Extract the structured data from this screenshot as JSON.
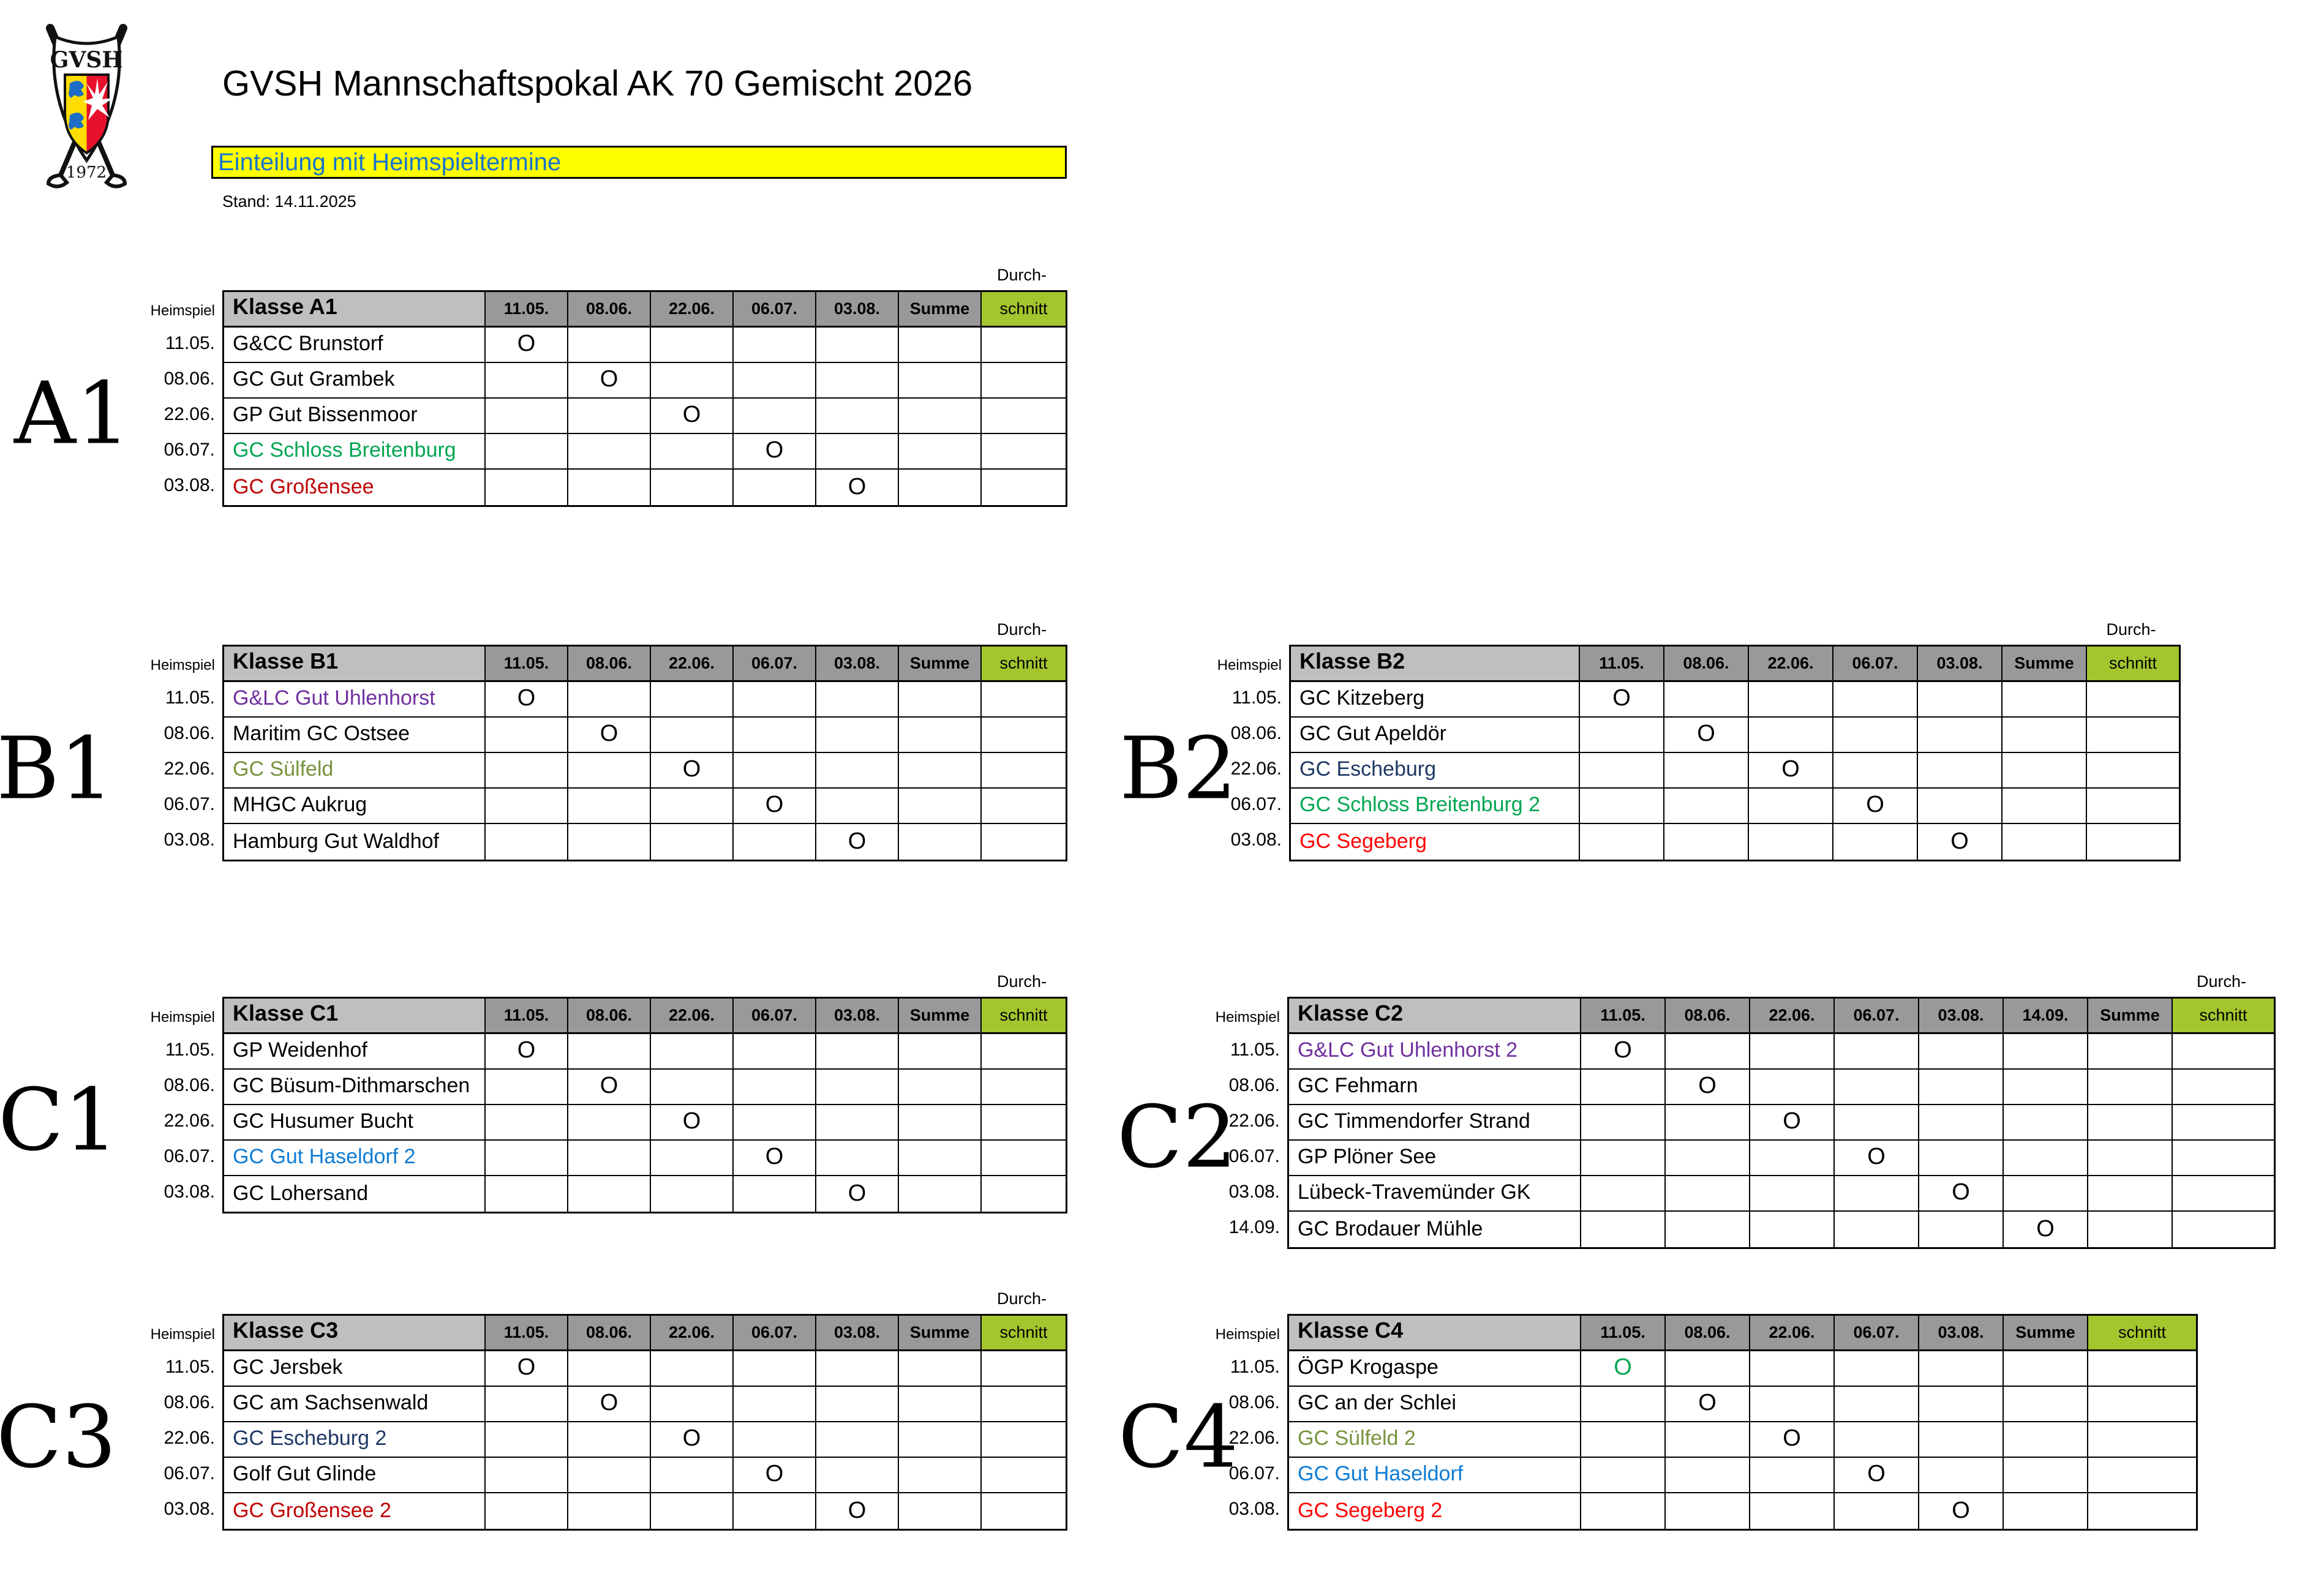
{
  "page": {
    "title": "GVSH Mannschaftspokal AK 70 Gemischt 2026",
    "banner": "Einteilung mit Heimspieltermine",
    "stand": "Stand: 14.11.2025"
  },
  "logo": {
    "org": "GVSH",
    "year": "1972"
  },
  "labels": {
    "heimspiel": "Heimspiel",
    "durch": "Durch-",
    "schnitt": "schnitt",
    "summe": "Summe",
    "mark": "O"
  },
  "colors": {
    "black": "#000000",
    "green": "#00A651",
    "red": "#FF0000",
    "darkred": "#C00000",
    "purple": "#7030A0",
    "olive": "#76933C",
    "navy": "#1F3864",
    "blue": "#0E7CD4",
    "header_light_gray": "#BFBFBF",
    "header_dark_gray": "#999999",
    "schnitt_green": "#A3C52E",
    "banner_yellow": "#FFFF00",
    "banner_text_blue": "#1874CD"
  },
  "tables": [
    {
      "id": "A1",
      "title": "Klasse A1",
      "show_durch": true,
      "dates": [
        "11.05.",
        "08.06.",
        "22.06.",
        "06.07.",
        "03.08."
      ],
      "rows": [
        {
          "date": "11.05.",
          "club": "G&CC Brunstorf",
          "club_color": "black",
          "mark_col": 0,
          "mark_color": "black"
        },
        {
          "date": "08.06.",
          "club": "GC Gut Grambek",
          "club_color": "black",
          "mark_col": 1,
          "mark_color": "black"
        },
        {
          "date": "22.06.",
          "club": "GP Gut Bissenmoor",
          "club_color": "black",
          "mark_col": 2,
          "mark_color": "black"
        },
        {
          "date": "06.07.",
          "club": "GC Schloss Breitenburg",
          "club_color": "green",
          "mark_col": 3,
          "mark_color": "black"
        },
        {
          "date": "03.08.",
          "club": "GC Großensee",
          "club_color": "darkred",
          "mark_col": 4,
          "mark_color": "black"
        }
      ]
    },
    {
      "id": "B1",
      "title": "Klasse B1",
      "show_durch": true,
      "dates": [
        "11.05.",
        "08.06.",
        "22.06.",
        "06.07.",
        "03.08."
      ],
      "rows": [
        {
          "date": "11.05.",
          "club": "G&LC Gut Uhlenhorst",
          "club_color": "purple",
          "mark_col": 0,
          "mark_color": "black"
        },
        {
          "date": "08.06.",
          "club": "Maritim GC Ostsee",
          "club_color": "black",
          "mark_col": 1,
          "mark_color": "black"
        },
        {
          "date": "22.06.",
          "club": "GC Sülfeld",
          "club_color": "olive",
          "mark_col": 2,
          "mark_color": "black"
        },
        {
          "date": "06.07.",
          "club": "MHGC Aukrug",
          "club_color": "black",
          "mark_col": 3,
          "mark_color": "black"
        },
        {
          "date": "03.08.",
          "club": "Hamburg Gut Waldhof",
          "club_color": "black",
          "mark_col": 4,
          "mark_color": "black"
        }
      ]
    },
    {
      "id": "B2",
      "title": "Klasse B2",
      "show_durch": true,
      "dates": [
        "11.05.",
        "08.06.",
        "22.06.",
        "06.07.",
        "03.08."
      ],
      "rows": [
        {
          "date": "11.05.",
          "club": "GC Kitzeberg",
          "club_color": "black",
          "mark_col": 0,
          "mark_color": "black"
        },
        {
          "date": "08.06.",
          "club": "GC Gut Apeldör",
          "club_color": "black",
          "mark_col": 1,
          "mark_color": "black"
        },
        {
          "date": "22.06.",
          "club": "GC Escheburg",
          "club_color": "navy",
          "mark_col": 2,
          "mark_color": "black"
        },
        {
          "date": "06.07.",
          "club": "GC Schloss Breitenburg 2",
          "club_color": "green",
          "mark_col": 3,
          "mark_color": "black"
        },
        {
          "date": "03.08.",
          "club": "GC Segeberg",
          "club_color": "red",
          "mark_col": 4,
          "mark_color": "black"
        }
      ]
    },
    {
      "id": "C1",
      "title": "Klasse C1",
      "show_durch": true,
      "dates": [
        "11.05.",
        "08.06.",
        "22.06.",
        "06.07.",
        "03.08."
      ],
      "rows": [
        {
          "date": "11.05.",
          "club": "GP Weidenhof",
          "club_color": "black",
          "mark_col": 0,
          "mark_color": "black"
        },
        {
          "date": "08.06.",
          "club": "GC Büsum-Dithmarschen",
          "club_color": "black",
          "mark_col": 1,
          "mark_color": "black"
        },
        {
          "date": "22.06.",
          "club": "GC Husumer Bucht",
          "club_color": "black",
          "mark_col": 2,
          "mark_color": "black"
        },
        {
          "date": "06.07.",
          "club": "GC Gut Haseldorf 2",
          "club_color": "blue",
          "mark_col": 3,
          "mark_color": "black"
        },
        {
          "date": "03.08.",
          "club": "GC Lohersand",
          "club_color": "black",
          "mark_col": 4,
          "mark_color": "black"
        }
      ]
    },
    {
      "id": "C2",
      "title": "Klasse C2",
      "show_durch": true,
      "dates": [
        "11.05.",
        "08.06.",
        "22.06.",
        "06.07.",
        "03.08.",
        "14.09."
      ],
      "rows": [
        {
          "date": "11.05.",
          "club": "G&LC Gut Uhlenhorst 2",
          "club_color": "purple",
          "mark_col": 0,
          "mark_color": "black"
        },
        {
          "date": "08.06.",
          "club": "GC Fehmarn",
          "club_color": "black",
          "mark_col": 1,
          "mark_color": "black"
        },
        {
          "date": "22.06.",
          "club": "GC Timmendorfer Strand",
          "club_color": "black",
          "mark_col": 2,
          "mark_color": "black"
        },
        {
          "date": "06.07.",
          "club": "GP Plöner See",
          "club_color": "black",
          "mark_col": 3,
          "mark_color": "black"
        },
        {
          "date": "03.08.",
          "club": "Lübeck-Travemünder GK",
          "club_color": "black",
          "mark_col": 4,
          "mark_color": "black"
        },
        {
          "date": "14.09.",
          "club": "GC Brodauer Mühle",
          "club_color": "black",
          "mark_col": 5,
          "mark_color": "black"
        }
      ]
    },
    {
      "id": "C3",
      "title": "Klasse C3",
      "show_durch": true,
      "dates": [
        "11.05.",
        "08.06.",
        "22.06.",
        "06.07.",
        "03.08."
      ],
      "rows": [
        {
          "date": "11.05.",
          "club": "GC Jersbek",
          "club_color": "black",
          "mark_col": 0,
          "mark_color": "black"
        },
        {
          "date": "08.06.",
          "club": "GC am Sachsenwald",
          "club_color": "black",
          "mark_col": 1,
          "mark_color": "black"
        },
        {
          "date": "22.06.",
          "club": "GC Escheburg 2",
          "club_color": "navy",
          "mark_col": 2,
          "mark_color": "black"
        },
        {
          "date": "06.07.",
          "club": "Golf Gut Glinde",
          "club_color": "black",
          "mark_col": 3,
          "mark_color": "black"
        },
        {
          "date": "03.08.",
          "club": "GC Großensee 2",
          "club_color": "darkred",
          "mark_col": 4,
          "mark_color": "black"
        }
      ]
    },
    {
      "id": "C4",
      "title": "Klasse C4",
      "show_durch": false,
      "dates": [
        "11.05.",
        "08.06.",
        "22.06.",
        "06.07.",
        "03.08."
      ],
      "rows": [
        {
          "date": "11.05.",
          "club": "ÖGP Krogaspe",
          "club_color": "black",
          "mark_col": 0,
          "mark_color": "green"
        },
        {
          "date": "08.06.",
          "club": "GC an der Schlei",
          "club_color": "black",
          "mark_col": 1,
          "mark_color": "black"
        },
        {
          "date": "22.06.",
          "club": "GC Sülfeld 2",
          "club_color": "olive",
          "mark_col": 2,
          "mark_color": "black"
        },
        {
          "date": "06.07.",
          "club": "GC Gut Haseldorf",
          "club_color": "blue",
          "mark_col": 3,
          "mark_color": "black"
        },
        {
          "date": "03.08.",
          "club": "GC Segeberg 2",
          "club_color": "red",
          "mark_col": 4,
          "mark_color": "black"
        }
      ]
    }
  ]
}
